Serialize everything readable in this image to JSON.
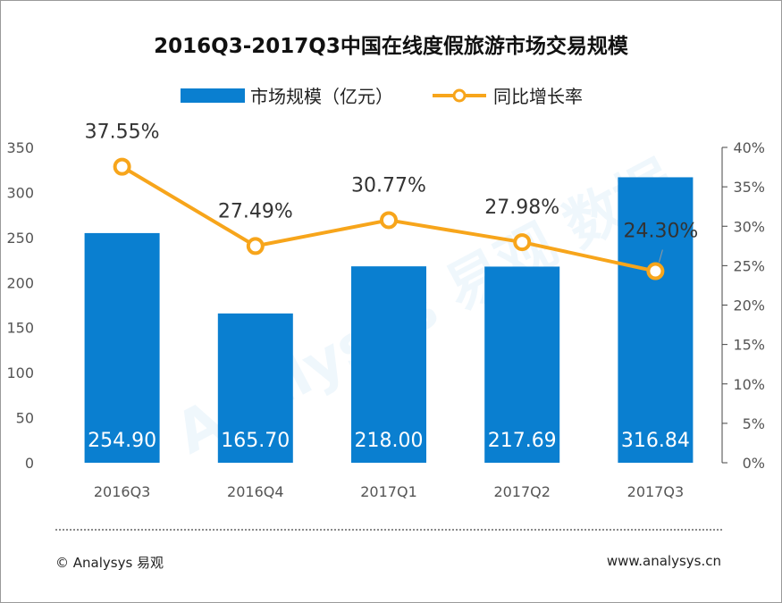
{
  "title": "2016Q3-2017Q3中国在线度假旅游市场交易规模",
  "legend": {
    "bar_label": "市场规模（亿元）",
    "line_label": "同比增长率"
  },
  "colors": {
    "bar": "#0a7fd0",
    "line": "#f7a51b",
    "marker_fill": "#ffffff",
    "axis_text": "#555555",
    "label_text": "#333333"
  },
  "watermark": "Analysys 易观 数据",
  "footer": {
    "left": "© Analysys 易观",
    "right": "www.analysys.cn"
  },
  "chart_data": {
    "type": "bar",
    "categories": [
      "2016Q3",
      "2016Q4",
      "2017Q1",
      "2017Q2",
      "2017Q3"
    ],
    "series": [
      {
        "name": "市场规模（亿元）",
        "type": "bar",
        "axis": "left",
        "values": [
          254.9,
          165.7,
          218.0,
          217.69,
          316.84
        ],
        "labels": [
          "254.90",
          "165.70",
          "218.00",
          "217.69",
          "316.84"
        ]
      },
      {
        "name": "同比增长率",
        "type": "line",
        "axis": "right",
        "values": [
          37.55,
          27.49,
          30.77,
          27.98,
          24.3
        ],
        "labels": [
          "37.55%",
          "27.49%",
          "30.77%",
          "27.98%",
          "24.30%"
        ]
      }
    ],
    "y_left": {
      "range": [
        0,
        350
      ],
      "ticks": [
        "0",
        "50",
        "100",
        "150",
        "200",
        "250",
        "300",
        "350"
      ]
    },
    "y_right": {
      "range": [
        0,
        40
      ],
      "ticks": [
        "0%",
        "5%",
        "10%",
        "15%",
        "20%",
        "25%",
        "30%",
        "35%",
        "40%"
      ]
    },
    "grid": false,
    "legend_position": "top"
  }
}
